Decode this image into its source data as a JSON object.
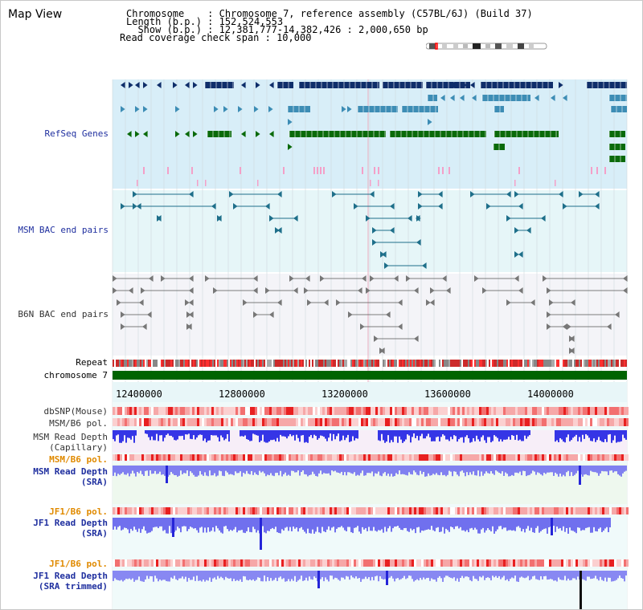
{
  "header": {
    "title": "Map View",
    "info_lines": [
      "Chromosome    : Chromosome 7, reference assembly (C57BL/6J) (Build 37)",
      "Length (b.p.) : 152,524,553",
      "  Show (b.p.) : 12,381,777-14,382,426 : 2,000,650 bp",
      "Read coverage check span : 10,000"
    ]
  },
  "tracks": {
    "refseq": {
      "label": "RefSeq Genes",
      "color": "#1f2f9f"
    },
    "msm_bac": {
      "label": "MSM BAC end pairs",
      "color": "#1f2f9f"
    },
    "b6n_bac": {
      "label": "B6N BAC end pairs",
      "color": "#333333"
    },
    "repeat": {
      "label": "Repeat"
    },
    "chromosome": {
      "label": "chromosome 7",
      "color": "#006400"
    }
  },
  "axis": {
    "ticks": [
      "12400000",
      "12800000",
      "13200000",
      "13600000",
      "14000000"
    ]
  },
  "data_rows": [
    {
      "label": "dbSNP(Mouse)",
      "color": "#333333"
    },
    {
      "label": "MSM/B6 pol.",
      "color": "#333333"
    },
    {
      "label": "MSM Read Depth",
      "color": "#333333"
    },
    {
      "label": "(Capillary)",
      "color": "#333333"
    },
    {
      "label": "MSM/B6 pol.",
      "color": "#e08a00"
    },
    {
      "label": "MSM Read Depth",
      "color": "#1f2f9f"
    },
    {
      "label": "(SRA)",
      "color": "#1f2f9f"
    },
    {
      "label": "JF1/B6 pol.",
      "color": "#e08a00"
    },
    {
      "label": "JF1 Read Depth",
      "color": "#1f2f9f"
    },
    {
      "label": "(SRA)",
      "color": "#1f2f9f"
    },
    {
      "label": "JF1/B6 pol.",
      "color": "#e08a00"
    },
    {
      "label": "JF1 Read Depth",
      "color": "#1f2f9f"
    },
    {
      "label": "(SRA trimmed)",
      "color": "#1f2f9f"
    }
  ],
  "colors": {
    "refseq_dark": "#0f2e6a",
    "refseq_mid": "#3d8db5",
    "refseq_green": "#0a6a0a",
    "msm_pair": "#1e6f8a",
    "b6n_pair": "#777777",
    "depth_blue": "#3a3adf",
    "pol_red": "#e83030"
  }
}
